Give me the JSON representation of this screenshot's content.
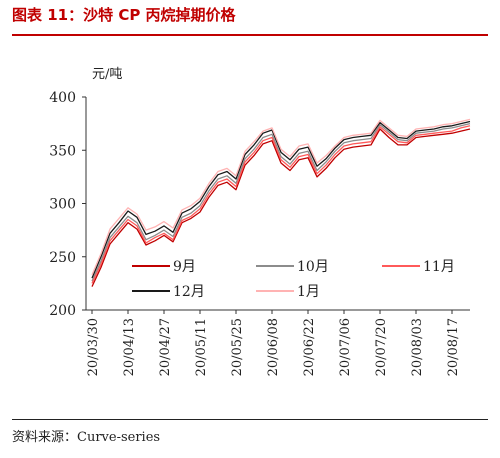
{
  "figure": {
    "title": "图表 11：沙特 CP 丙烷掉期价格",
    "source": "资料来源：Curve-series"
  },
  "colors": {
    "title": "#c00000"
  },
  "chart_data": {
    "type": "line",
    "unit_label": "元/吨",
    "ylim": [
      200,
      400
    ],
    "yticks": [
      200,
      250,
      300,
      350,
      400
    ],
    "x_tick_labels": [
      "20/03/30",
      "20/04/13",
      "20/04/27",
      "20/05/11",
      "20/05/25",
      "20/06/08",
      "20/06/22",
      "20/07/06",
      "20/07/20",
      "20/08/03",
      "20/08/17"
    ],
    "x": [
      "20/03/30",
      "20/04/02",
      "20/04/06",
      "20/04/09",
      "20/04/13",
      "20/04/16",
      "20/04/20",
      "20/04/23",
      "20/04/27",
      "20/04/30",
      "20/05/04",
      "20/05/07",
      "20/05/11",
      "20/05/14",
      "20/05/18",
      "20/05/21",
      "20/05/25",
      "20/05/28",
      "20/06/01",
      "20/06/04",
      "20/06/08",
      "20/06/11",
      "20/06/15",
      "20/06/18",
      "20/06/22",
      "20/06/25",
      "20/06/29",
      "20/07/02",
      "20/07/06",
      "20/07/09",
      "20/07/13",
      "20/07/16",
      "20/07/20",
      "20/07/23",
      "20/07/27",
      "20/07/30",
      "20/08/03",
      "20/08/06",
      "20/08/10",
      "20/08/13",
      "20/08/17",
      "20/08/20",
      "20/08/24"
    ],
    "grid": false,
    "legend_position": "bottom-inside",
    "series": [
      {
        "name": "9月",
        "color": "#c00000",
        "values": [
          222,
          240,
          262,
          272,
          282,
          276,
          261,
          265,
          270,
          264,
          282,
          286,
          292,
          306,
          317,
          320,
          313,
          336,
          345,
          356,
          359,
          338,
          331,
          341,
          343,
          325,
          333,
          343,
          351,
          353,
          354,
          355,
          370,
          362,
          355,
          355,
          362,
          363,
          364,
          365,
          366,
          368,
          370
        ]
      },
      {
        "name": "10月",
        "color": "#8c8c8c",
        "values": [
          227,
          246,
          268,
          278,
          288,
          282,
          266,
          270,
          275,
          269,
          287,
          291,
          298,
          312,
          323,
          326,
          319,
          342,
          351,
          362,
          365,
          344,
          337,
          347,
          349,
          331,
          339,
          349,
          357,
          359,
          360,
          361,
          374,
          367,
          360,
          359,
          366,
          367,
          368,
          370,
          371,
          373,
          375
        ]
      },
      {
        "name": "11月",
        "color": "#ff5a5a",
        "values": [
          225,
          243,
          265,
          275,
          285,
          279,
          263,
          268,
          272,
          266,
          284,
          288,
          295,
          309,
          320,
          323,
          316,
          339,
          348,
          359,
          362,
          341,
          334,
          344,
          346,
          328,
          336,
          346,
          354,
          356,
          357,
          358,
          372,
          365,
          358,
          357,
          364,
          365,
          366,
          367,
          368,
          371,
          373
        ]
      },
      {
        "name": "12月",
        "color": "#1a1a1a",
        "values": [
          230,
          250,
          272,
          282,
          293,
          287,
          271,
          274,
          279,
          273,
          291,
          295,
          302,
          316,
          327,
          330,
          323,
          346,
          355,
          366,
          369,
          348,
          341,
          351,
          353,
          335,
          342,
          352,
          360,
          362,
          363,
          364,
          376,
          369,
          362,
          361,
          368,
          369,
          370,
          372,
          373,
          375,
          377
        ]
      },
      {
        "name": "1月",
        "color": "#ffb3b3",
        "values": [
          233,
          253,
          276,
          286,
          296,
          290,
          275,
          278,
          283,
          277,
          294,
          298,
          305,
          319,
          330,
          333,
          326,
          349,
          358,
          368,
          371,
          351,
          344,
          354,
          356,
          338,
          345,
          354,
          362,
          364,
          365,
          366,
          378,
          371,
          364,
          363,
          370,
          371,
          372,
          374,
          375,
          377,
          379
        ]
      }
    ]
  }
}
